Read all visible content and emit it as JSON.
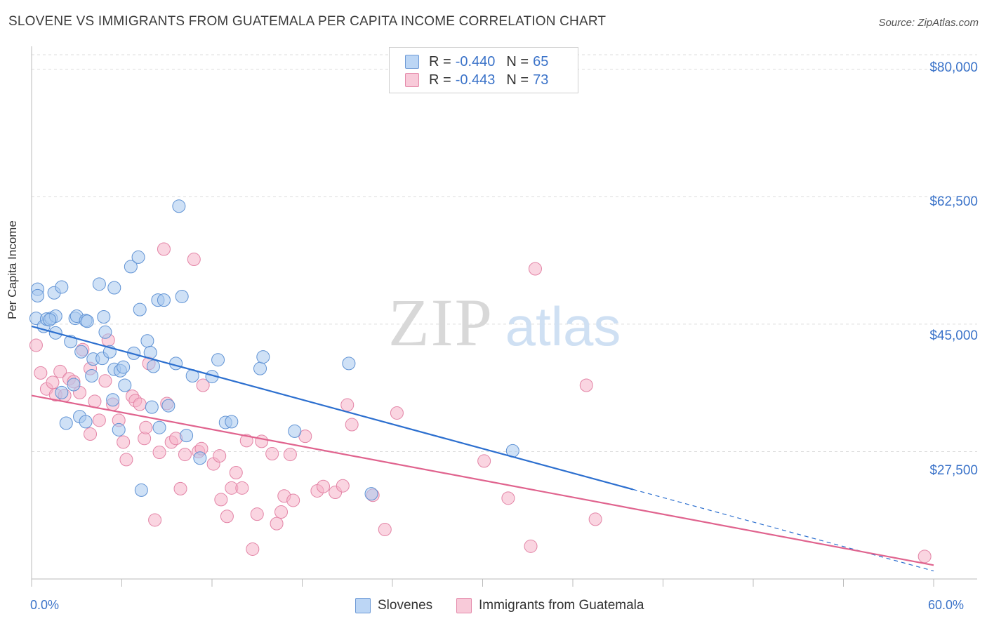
{
  "header": {
    "title": "SLOVENE VS IMMIGRANTS FROM GUATEMALA PER CAPITA INCOME CORRELATION CHART",
    "source": "Source: ZipAtlas.com"
  },
  "watermark": {
    "zip": "ZIP",
    "atlas": "atlas"
  },
  "colors": {
    "blue": "#3b73c9",
    "blue_fill": "#a8c8ef",
    "blue_line": "#2c6fcf",
    "pink_fill": "#f5b3c9",
    "pink_line": "#e0638e",
    "grid": "#dcdcdc"
  },
  "legend_top": [
    {
      "swatch": "blue",
      "r_label": "R =",
      "r_value": "-0.440",
      "n_label": "N =",
      "n_value": "65"
    },
    {
      "swatch": "pink",
      "r_label": "R =",
      "r_value": "-0.443",
      "n_label": "N =",
      "n_value": "73"
    }
  ],
  "legend_bottom": [
    {
      "swatch": "blue",
      "label": "Slovenes"
    },
    {
      "swatch": "pink",
      "label": "Immigrants from Guatemala"
    }
  ],
  "chart_data": {
    "type": "scatter",
    "title": "SLOVENE VS IMMIGRANTS FROM GUATEMALA PER CAPITA INCOME CORRELATION CHART",
    "xlabel": "",
    "ylabel": "Per Capita Income",
    "xlim": [
      0,
      60
    ],
    "ylim": [
      10000,
      82000
    ],
    "x_tick_labels": [
      "0.0%",
      "60.0%"
    ],
    "y_ticks": [
      27500,
      45000,
      62500,
      80000
    ],
    "y_tick_labels": [
      "$27,500",
      "$45,000",
      "$62,500",
      "$80,000"
    ],
    "grid": "horizontal dashed",
    "legend_placement": "top-center and bottom",
    "series": [
      {
        "name": "Slovenes",
        "color": "blue",
        "points": [
          [
            0.3,
            45800
          ],
          [
            0.4,
            49800
          ],
          [
            0.4,
            48900
          ],
          [
            0.8,
            44700
          ],
          [
            1,
            45700
          ],
          [
            1.3,
            45800
          ],
          [
            1.6,
            46100
          ],
          [
            1.6,
            43800
          ],
          [
            1.5,
            49300
          ],
          [
            2,
            50100
          ],
          [
            2,
            35600
          ],
          [
            2.3,
            31400
          ],
          [
            2.6,
            42600
          ],
          [
            2.8,
            36700
          ],
          [
            2.9,
            45800
          ],
          [
            3,
            46100
          ],
          [
            3.3,
            41200
          ],
          [
            3.2,
            32300
          ],
          [
            3.6,
            45500
          ],
          [
            3.7,
            45400
          ],
          [
            4,
            37900
          ],
          [
            4.1,
            40200
          ],
          [
            4.5,
            50500
          ],
          [
            4.7,
            40300
          ],
          [
            4.8,
            46000
          ],
          [
            4.9,
            43900
          ],
          [
            5.2,
            41200
          ],
          [
            5.5,
            50000
          ],
          [
            5.5,
            38800
          ],
          [
            5.8,
            30500
          ],
          [
            5.9,
            38600
          ],
          [
            6.1,
            39100
          ],
          [
            6.2,
            36600
          ],
          [
            6.6,
            52900
          ],
          [
            6.8,
            41000
          ],
          [
            7.1,
            54200
          ],
          [
            7.2,
            47000
          ],
          [
            7.3,
            22200
          ],
          [
            7.7,
            42700
          ],
          [
            7.9,
            41100
          ],
          [
            8,
            33600
          ],
          [
            8.1,
            39200
          ],
          [
            8.4,
            48300
          ],
          [
            8.8,
            48300
          ],
          [
            9.1,
            33800
          ],
          [
            9.6,
            39600
          ],
          [
            9.8,
            61200
          ],
          [
            10,
            48800
          ],
          [
            10.7,
            37900
          ],
          [
            11.2,
            26600
          ],
          [
            12,
            37800
          ],
          [
            12.4,
            40100
          ],
          [
            12.9,
            31500
          ],
          [
            13.3,
            31600
          ],
          [
            15.2,
            38900
          ],
          [
            15.4,
            40500
          ],
          [
            17.5,
            30300
          ],
          [
            21.1,
            39600
          ],
          [
            22.6,
            21700
          ],
          [
            32,
            27600
          ],
          [
            1.2,
            45600
          ],
          [
            3.6,
            31600
          ],
          [
            5.4,
            34600
          ],
          [
            8.5,
            30800
          ],
          [
            10.3,
            29700
          ]
        ]
      },
      {
        "name": "Immigrants from Guatemala",
        "color": "pink",
        "points": [
          [
            0.3,
            42100
          ],
          [
            0.6,
            38300
          ],
          [
            1,
            36100
          ],
          [
            1.4,
            37000
          ],
          [
            1.6,
            35300
          ],
          [
            1.9,
            38500
          ],
          [
            2.2,
            35200
          ],
          [
            2.5,
            37500
          ],
          [
            2.8,
            37100
          ],
          [
            3.2,
            35600
          ],
          [
            3.4,
            41500
          ],
          [
            3.9,
            38900
          ],
          [
            3.9,
            29900
          ],
          [
            4.2,
            34400
          ],
          [
            4.5,
            31800
          ],
          [
            4.9,
            37200
          ],
          [
            5.1,
            42800
          ],
          [
            5.4,
            34000
          ],
          [
            5.8,
            31800
          ],
          [
            6.1,
            28800
          ],
          [
            6.3,
            26400
          ],
          [
            6.7,
            35100
          ],
          [
            6.9,
            34500
          ],
          [
            7.2,
            34000
          ],
          [
            7.5,
            29300
          ],
          [
            7.6,
            30800
          ],
          [
            7.8,
            39600
          ],
          [
            8.2,
            18100
          ],
          [
            8.5,
            27400
          ],
          [
            8.8,
            55300
          ],
          [
            9,
            34100
          ],
          [
            9.3,
            28800
          ],
          [
            9.6,
            29300
          ],
          [
            9.9,
            22400
          ],
          [
            10.2,
            27100
          ],
          [
            10.8,
            53900
          ],
          [
            11.1,
            27500
          ],
          [
            11.3,
            27900
          ],
          [
            11.4,
            36600
          ],
          [
            12.1,
            25800
          ],
          [
            12.6,
            20900
          ],
          [
            13,
            18600
          ],
          [
            13.3,
            22500
          ],
          [
            13.6,
            24600
          ],
          [
            14,
            22500
          ],
          [
            14.3,
            29000
          ],
          [
            14.7,
            14100
          ],
          [
            15,
            18900
          ],
          [
            15.3,
            28900
          ],
          [
            16,
            27200
          ],
          [
            16.3,
            17600
          ],
          [
            16.6,
            19200
          ],
          [
            16.8,
            21400
          ],
          [
            17.4,
            20800
          ],
          [
            18.2,
            29600
          ],
          [
            19,
            22100
          ],
          [
            19.4,
            22700
          ],
          [
            20.2,
            21900
          ],
          [
            20.7,
            22800
          ],
          [
            21,
            33900
          ],
          [
            21.3,
            31200
          ],
          [
            22.7,
            21500
          ],
          [
            23.5,
            16800
          ],
          [
            24.3,
            32800
          ],
          [
            30.1,
            26200
          ],
          [
            31.7,
            21100
          ],
          [
            33.2,
            14500
          ],
          [
            33.5,
            52600
          ],
          [
            36.9,
            36600
          ],
          [
            37.5,
            18200
          ],
          [
            59.4,
            13100
          ],
          [
            12.5,
            26900
          ],
          [
            17.2,
            27100
          ]
        ]
      }
    ],
    "trend_lines": [
      {
        "series": "Slovenes",
        "x": [
          0,
          40
        ],
        "y": [
          44700,
          22300
        ],
        "dashed_extension_to_x": 60
      },
      {
        "series": "Immigrants from Guatemala",
        "x": [
          0,
          60
        ],
        "y": [
          35200,
          11900
        ]
      }
    ]
  }
}
